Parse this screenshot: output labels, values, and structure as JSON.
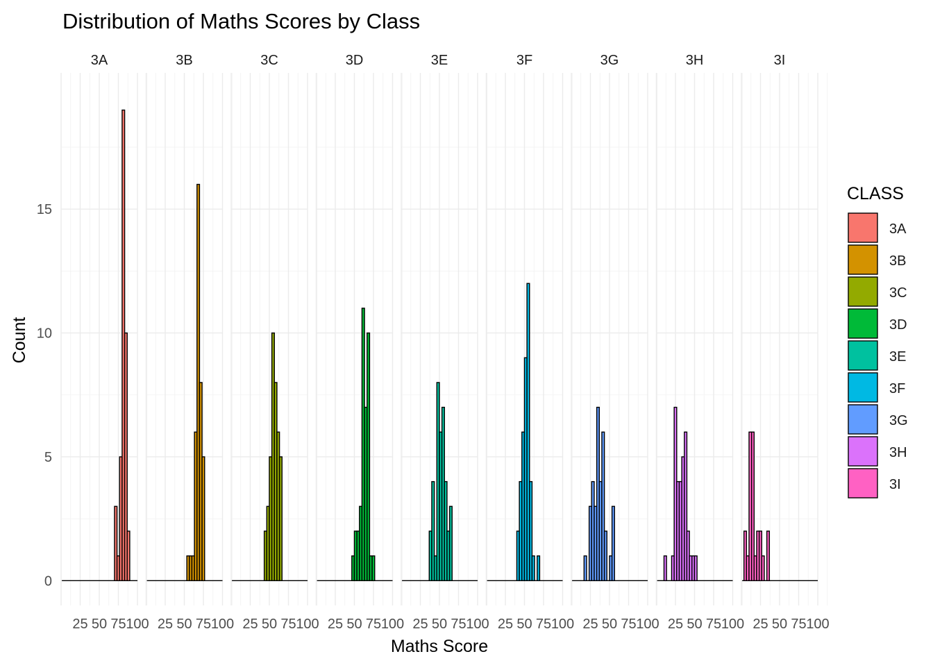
{
  "chart_data": {
    "type": "histogram",
    "title": "Distribution of Maths Scores by Class",
    "xlabel": "Maths Score",
    "ylabel": "Count",
    "facet_by": "CLASS",
    "xlim": [
      0,
      100
    ],
    "x_ticks": [
      "25",
      "50",
      "75",
      "100"
    ],
    "ylim": [
      0,
      19
    ],
    "y_ticks": [
      "0",
      "5",
      "10",
      "15"
    ],
    "bin_width": 3.33,
    "bin_start": 0,
    "grid": true,
    "legend": {
      "title": "CLASS",
      "position": "right"
    },
    "series": [
      {
        "name": "3A",
        "color": "#F8766D",
        "bins": {
          "21": 3,
          "22": 1,
          "23": 5,
          "24": 19,
          "25": 10,
          "26": 2
        }
      },
      {
        "name": "3B",
        "color": "#D39200",
        "bins": {
          "16": 1,
          "17": 1,
          "18": 1,
          "19": 6,
          "20": 16,
          "21": 8,
          "22": 5
        }
      },
      {
        "name": "3C",
        "color": "#93AA00",
        "bins": {
          "13": 2,
          "14": 3,
          "15": 5,
          "16": 10,
          "17": 8,
          "18": 6,
          "19": 5
        }
      },
      {
        "name": "3D",
        "color": "#00BA38",
        "bins": {
          "14": 1,
          "15": 2,
          "16": 2,
          "17": 3,
          "18": 11,
          "19": 7,
          "20": 10,
          "21": 1,
          "22": 1
        }
      },
      {
        "name": "3E",
        "color": "#00C19F",
        "bins": {
          "11": 2,
          "12": 4,
          "13": 1,
          "14": 8,
          "15": 6,
          "16": 7,
          "17": 4,
          "18": 2,
          "19": 3
        }
      },
      {
        "name": "3F",
        "color": "#00B9E3",
        "bins": {
          "12": 2,
          "13": 4,
          "14": 6,
          "15": 9,
          "16": 12,
          "17": 4,
          "18": 1,
          "20": 1
        }
      },
      {
        "name": "3G",
        "color": "#619CFF",
        "bins": {
          "5": 1,
          "7": 3,
          "8": 4,
          "9": 3,
          "10": 7,
          "11": 4,
          "12": 6,
          "13": 2,
          "15": 1,
          "16": 3
        }
      },
      {
        "name": "3H",
        "color": "#DB72FB",
        "bins": {
          "3": 1,
          "6": 1,
          "7": 7,
          "8": 4,
          "9": 4,
          "10": 5,
          "11": 6,
          "12": 2,
          "13": 1,
          "14": 1,
          "15": 1
        }
      },
      {
        "name": "3I",
        "color": "#FF61C3",
        "bins": {
          "1": 2,
          "2": 1,
          "3": 6,
          "4": 6,
          "5": 1,
          "6": 2,
          "7": 2,
          "8": 1,
          "10": 2
        }
      }
    ]
  }
}
